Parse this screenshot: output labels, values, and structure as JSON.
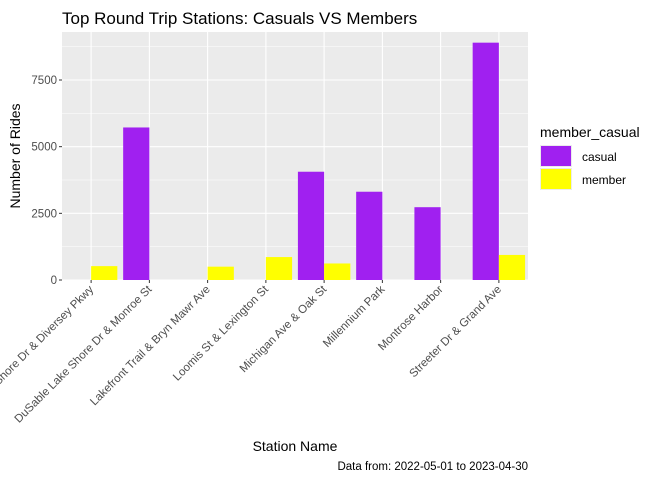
{
  "chart_data": {
    "type": "bar",
    "title": "Top Round Trip Stations: Casuals VS Members",
    "xlabel": "Station Name",
    "ylabel": "Number of Rides",
    "caption": "Data from: 2022-05-01 to 2023-04-30",
    "categories": [
      "DuSable Lake Shore Dr & Diversey Pkwy",
      "DuSable Lake Shore Dr & Monroe St",
      "Lakefront Trail & Bryn Mawr Ave",
      "Loomis St & Lexington St",
      "Michigan Ave & Oak St",
      "Millennium Park",
      "Montrose Harbor",
      "Streeter Dr & Grand Ave"
    ],
    "series": [
      {
        "name": "casual",
        "color": "#A020F0",
        "values": [
          0,
          5720,
          0,
          0,
          4060,
          3310,
          2730,
          8900
        ]
      },
      {
        "name": "member",
        "color": "#FFFF00",
        "values": [
          520,
          0,
          500,
          860,
          620,
          0,
          0,
          940
        ]
      }
    ],
    "ylim": [
      0,
      9300
    ],
    "yticks": [
      0,
      2500,
      5000,
      7500
    ],
    "ytick_labels": [
      "0",
      "2500",
      "5000",
      "7500"
    ],
    "grid": true,
    "panel_background": "#EBEBEB",
    "grid_color": "#FFFFFF",
    "legend": {
      "title": "member_casual",
      "position": "right"
    }
  }
}
